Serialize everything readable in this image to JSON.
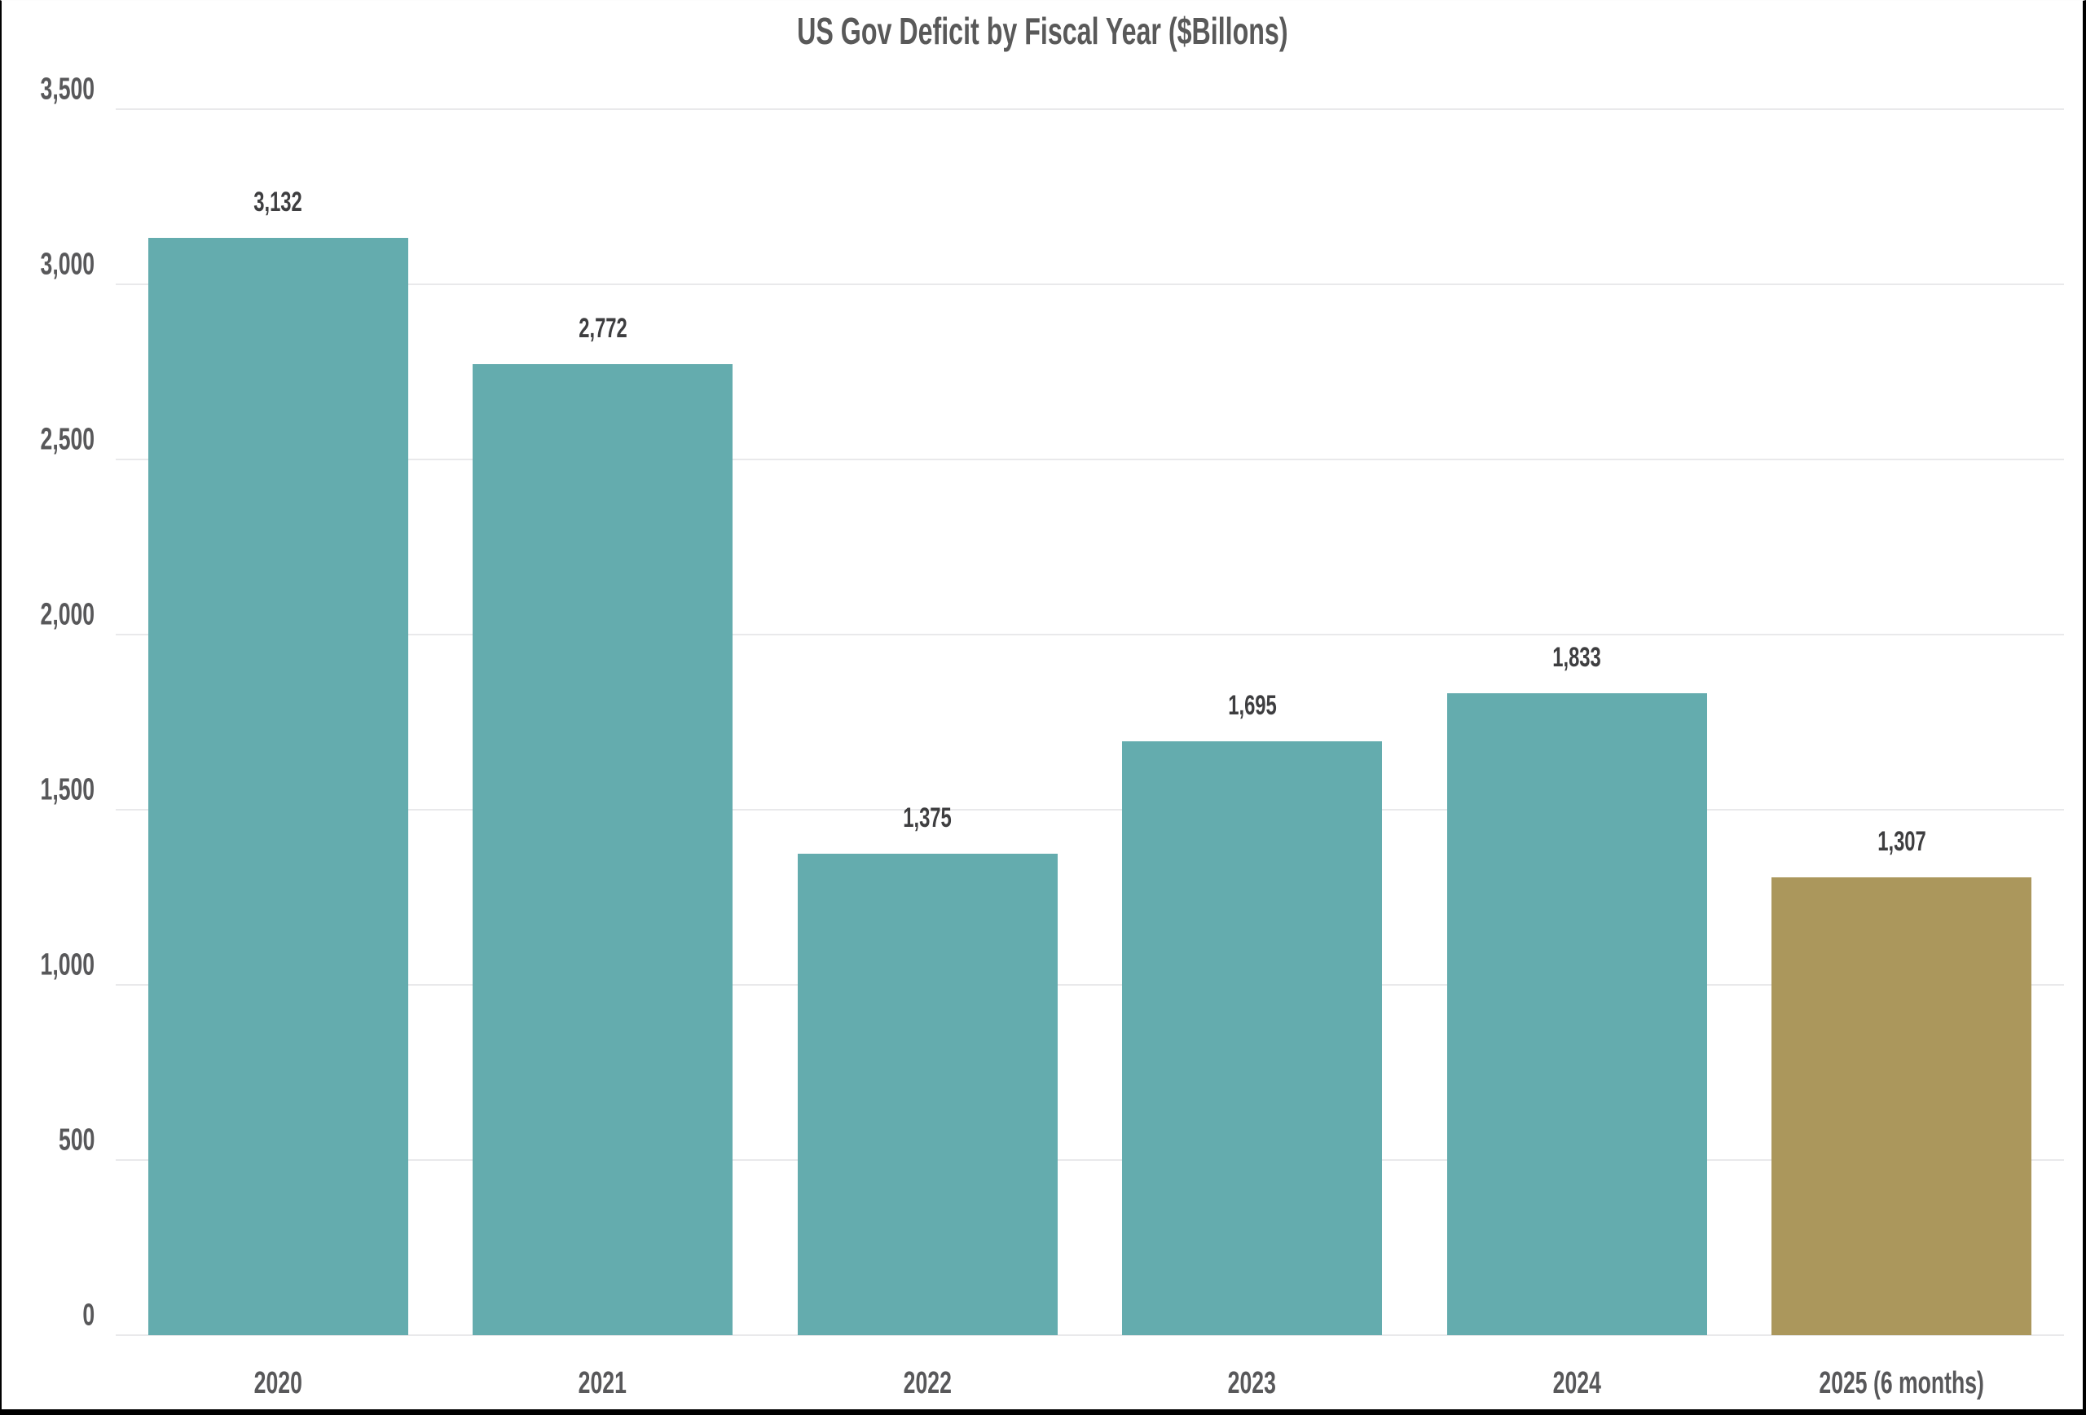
{
  "title": "US Gov Deficit by Fiscal Year ($Billons)",
  "chart_data": {
    "type": "bar",
    "title": "US Gov Deficit by Fiscal Year ($Billons)",
    "categories": [
      "2020",
      "2021",
      "2022",
      "2023",
      "2024",
      "2025 (6 months)"
    ],
    "values": [
      3132,
      2772,
      1375,
      1695,
      1833,
      1307
    ],
    "value_labels": [
      "3,132",
      "2,772",
      "1,375",
      "1,695",
      "1,833",
      "1,307"
    ],
    "bar_colors": [
      "#64ACAE",
      "#64ACAE",
      "#64ACAE",
      "#64ACAE",
      "#64ACAE",
      "#AB975C"
    ],
    "xlabel": "",
    "ylabel": "",
    "ylim": [
      0,
      3500
    ],
    "ytick_step": 500,
    "yticks": [
      0,
      500,
      1000,
      1500,
      2000,
      2500,
      3000,
      3500
    ],
    "ytick_labels": [
      "0",
      "500",
      "1,000",
      "1,500",
      "2,000",
      "2,500",
      "3,000",
      "3,500"
    ],
    "grid": true,
    "legend": false,
    "colors": {
      "bar_default": "#64ACAE",
      "bar_highlight": "#AB975C",
      "gridline": "#e9e9eb",
      "axis_text": "#58585a",
      "value_text": "#3e3e40",
      "title_text": "#595959",
      "background": "#ffffff",
      "frame_border": "#000000"
    }
  }
}
